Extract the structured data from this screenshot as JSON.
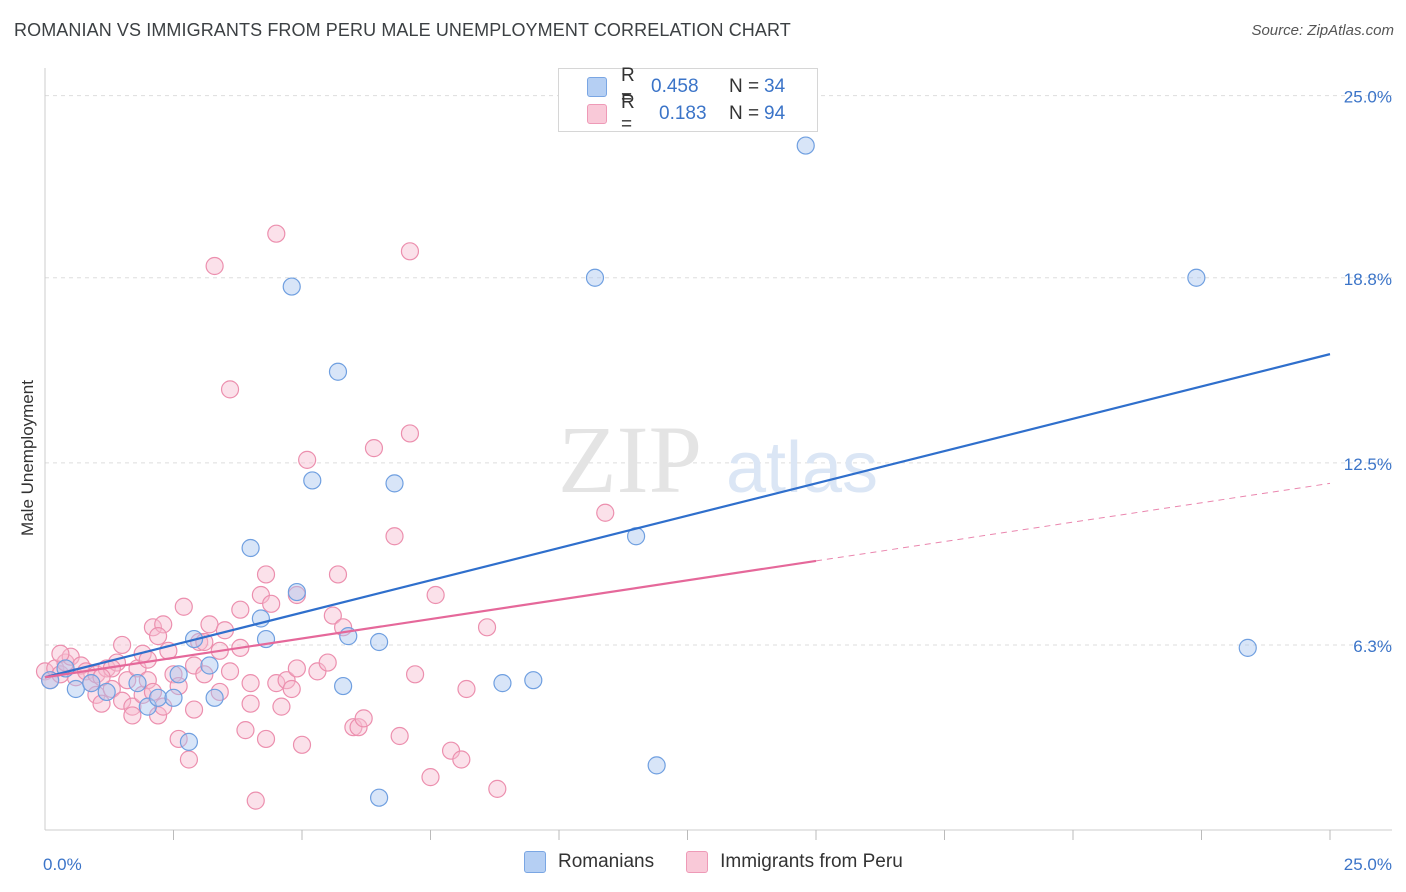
{
  "title": "ROMANIAN VS IMMIGRANTS FROM PERU MALE UNEMPLOYMENT CORRELATION CHART",
  "source": "Source: ZipAtlas.com",
  "watermark": {
    "zip": "ZIP",
    "atlas": "atlas"
  },
  "colors": {
    "blue_fill": "#a9c6ef",
    "blue_stroke": "#6f9fe0",
    "blue_line": "#2f6fcc",
    "pink_fill": "#f6bdd0",
    "pink_stroke": "#ec8fae",
    "pink_line": "#e5689a",
    "axis_text": "#3b74c8",
    "grid": "#dddddd"
  },
  "legend": {
    "rows": [
      {
        "r_label": "R =",
        "r_value": "0.458",
        "n_label": "N =",
        "n_value": "34",
        "swatch_fill": "#b5cff3",
        "swatch_stroke": "#7aa6e3"
      },
      {
        "r_label": "R =",
        "r_value": "0.183",
        "n_label": "N =",
        "n_value": "94",
        "swatch_fill": "#f9c9d8",
        "swatch_stroke": "#ee9ab7"
      }
    ]
  },
  "bottom_legend": [
    {
      "label": "Romanians",
      "swatch_fill": "#b5cff3",
      "swatch_stroke": "#7aa6e3"
    },
    {
      "label": "Immigrants from Peru",
      "swatch_fill": "#f9c9d8",
      "swatch_stroke": "#ee9ab7"
    }
  ],
  "chart_data": {
    "type": "scatter",
    "title": "ROMANIAN VS IMMIGRANTS FROM PERU MALE UNEMPLOYMENT CORRELATION CHART",
    "xlabel": "",
    "ylabel": "Male Unemployment",
    "xlim": [
      0,
      25
    ],
    "ylim": [
      0,
      25.6
    ],
    "x_tick_labels": [
      {
        "value": 0,
        "label": "0.0%"
      },
      {
        "value": 25,
        "label": "25.0%"
      }
    ],
    "y_tick_labels": [
      {
        "value": 6.3,
        "label": "6.3%"
      },
      {
        "value": 12.5,
        "label": "12.5%"
      },
      {
        "value": 18.8,
        "label": "18.8%"
      },
      {
        "value": 25.0,
        "label": "25.0%"
      }
    ],
    "x_minor_ticks": [
      2.5,
      5,
      7.5,
      10,
      12.5,
      15,
      17.5,
      20,
      22.5,
      25
    ],
    "series": [
      {
        "name": "Romanians",
        "r": 0.458,
        "n": 34,
        "trend": {
          "x0": 0,
          "y0": 5.2,
          "x1": 25,
          "y1": 16.2,
          "solid_until": 25
        },
        "points": [
          [
            0.1,
            5.1
          ],
          [
            0.4,
            5.5
          ],
          [
            0.6,
            4.8
          ],
          [
            0.9,
            5.0
          ],
          [
            1.2,
            4.7
          ],
          [
            1.8,
            5.0
          ],
          [
            2.0,
            4.2
          ],
          [
            2.2,
            4.5
          ],
          [
            2.5,
            4.5
          ],
          [
            2.6,
            5.3
          ],
          [
            2.8,
            3.0
          ],
          [
            2.9,
            6.5
          ],
          [
            3.2,
            5.6
          ],
          [
            3.3,
            4.5
          ],
          [
            4.0,
            9.6
          ],
          [
            4.2,
            7.2
          ],
          [
            4.3,
            6.5
          ],
          [
            4.8,
            18.5
          ],
          [
            4.9,
            8.1
          ],
          [
            5.2,
            11.9
          ],
          [
            5.7,
            15.6
          ],
          [
            5.9,
            6.6
          ],
          [
            5.8,
            4.9
          ],
          [
            6.5,
            6.4
          ],
          [
            6.5,
            1.1
          ],
          [
            6.8,
            11.8
          ],
          [
            8.9,
            5.0
          ],
          [
            9.5,
            5.1
          ],
          [
            10.7,
            18.8
          ],
          [
            11.5,
            10.0
          ],
          [
            11.9,
            2.2
          ],
          [
            14.8,
            23.3
          ],
          [
            22.4,
            18.8
          ],
          [
            23.4,
            6.2
          ]
        ]
      },
      {
        "name": "Immigrants from Peru",
        "r": 0.183,
        "n": 94,
        "trend": {
          "x0": 0,
          "y0": 5.2,
          "x1": 25,
          "y1": 11.8,
          "solid_until": 15
        },
        "points": [
          [
            0.0,
            5.4
          ],
          [
            0.1,
            5.1
          ],
          [
            0.2,
            5.5
          ],
          [
            0.3,
            5.3
          ],
          [
            0.4,
            5.7
          ],
          [
            0.5,
            5.9
          ],
          [
            0.6,
            5.2
          ],
          [
            0.7,
            5.6
          ],
          [
            0.8,
            5.4
          ],
          [
            0.9,
            5.0
          ],
          [
            1.0,
            5.3
          ],
          [
            1.0,
            4.6
          ],
          [
            1.1,
            4.3
          ],
          [
            1.2,
            5.5
          ],
          [
            1.3,
            4.8
          ],
          [
            1.4,
            5.7
          ],
          [
            1.5,
            4.4
          ],
          [
            1.5,
            6.3
          ],
          [
            1.6,
            5.1
          ],
          [
            1.7,
            4.2
          ],
          [
            1.7,
            3.9
          ],
          [
            1.8,
            5.5
          ],
          [
            1.9,
            6.0
          ],
          [
            1.9,
            4.6
          ],
          [
            2.0,
            5.8
          ],
          [
            2.0,
            5.1
          ],
          [
            2.1,
            6.9
          ],
          [
            2.1,
            4.7
          ],
          [
            2.2,
            3.9
          ],
          [
            2.3,
            7.0
          ],
          [
            2.3,
            4.2
          ],
          [
            2.4,
            6.1
          ],
          [
            2.5,
            5.3
          ],
          [
            2.6,
            4.9
          ],
          [
            2.6,
            3.1
          ],
          [
            2.7,
            7.6
          ],
          [
            2.8,
            2.4
          ],
          [
            2.9,
            5.6
          ],
          [
            2.9,
            4.1
          ],
          [
            3.0,
            6.4
          ],
          [
            3.1,
            6.4
          ],
          [
            3.1,
            5.3
          ],
          [
            3.2,
            7.0
          ],
          [
            3.3,
            19.2
          ],
          [
            3.4,
            6.1
          ],
          [
            3.4,
            4.7
          ],
          [
            3.5,
            6.8
          ],
          [
            3.6,
            15.0
          ],
          [
            3.6,
            5.4
          ],
          [
            3.8,
            7.5
          ],
          [
            3.9,
            3.4
          ],
          [
            4.0,
            5.0
          ],
          [
            4.0,
            4.3
          ],
          [
            4.1,
            1.0
          ],
          [
            4.2,
            8.0
          ],
          [
            4.3,
            3.1
          ],
          [
            4.3,
            8.7
          ],
          [
            4.4,
            7.7
          ],
          [
            4.5,
            20.3
          ],
          [
            4.5,
            5.0
          ],
          [
            4.6,
            4.2
          ],
          [
            4.7,
            5.1
          ],
          [
            4.8,
            4.8
          ],
          [
            4.9,
            8.0
          ],
          [
            4.9,
            5.5
          ],
          [
            5.0,
            2.9
          ],
          [
            5.1,
            12.6
          ],
          [
            5.3,
            5.4
          ],
          [
            5.5,
            5.7
          ],
          [
            5.6,
            7.3
          ],
          [
            5.7,
            8.7
          ],
          [
            5.8,
            6.9
          ],
          [
            6.0,
            3.5
          ],
          [
            6.1,
            3.5
          ],
          [
            6.2,
            3.8
          ],
          [
            6.4,
            13.0
          ],
          [
            6.8,
            10.0
          ],
          [
            6.9,
            3.2
          ],
          [
            7.1,
            13.5
          ],
          [
            7.1,
            19.7
          ],
          [
            7.2,
            5.3
          ],
          [
            7.5,
            1.8
          ],
          [
            7.6,
            8.0
          ],
          [
            7.9,
            2.7
          ],
          [
            8.1,
            2.4
          ],
          [
            8.2,
            4.8
          ],
          [
            8.8,
            1.4
          ],
          [
            8.6,
            6.9
          ],
          [
            10.9,
            10.8
          ],
          [
            1.3,
            5.5
          ],
          [
            0.3,
            6.0
          ],
          [
            2.2,
            6.6
          ],
          [
            3.8,
            6.2
          ],
          [
            1.1,
            5.2
          ]
        ]
      }
    ]
  }
}
